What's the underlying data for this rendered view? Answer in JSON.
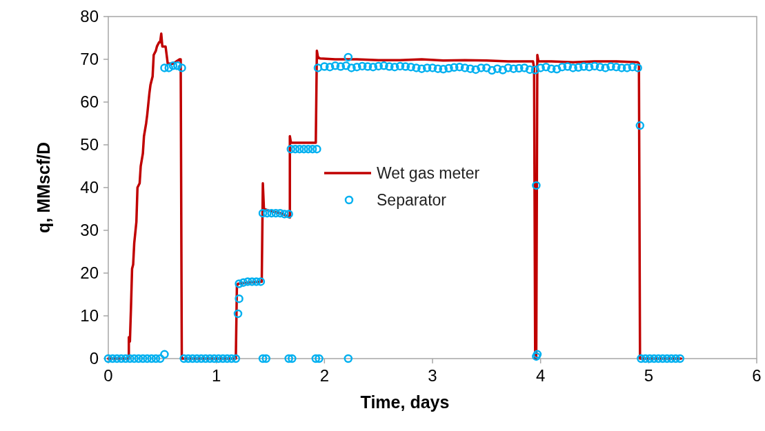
{
  "chart_data": {
    "type": "line",
    "xlabel": "Time, days",
    "ylabel": "q, MMscf/D",
    "xlim": [
      0,
      6
    ],
    "xticks": [
      0,
      1,
      2,
      3,
      4,
      5,
      6
    ],
    "ylim": [
      0,
      80
    ],
    "yticks": [
      0,
      10,
      20,
      30,
      40,
      50,
      60,
      70,
      80
    ],
    "grid": false,
    "legend": "center",
    "series": [
      {
        "name": "Wet gas meter",
        "color": "#c00000",
        "marker": "none",
        "line_style": "solid",
        "x": [
          0,
          0.19,
          0.19,
          0.2,
          0.21,
          0.22,
          0.23,
          0.24,
          0.26,
          0.27,
          0.29,
          0.3,
          0.32,
          0.33,
          0.35,
          0.36,
          0.38,
          0.39,
          0.41,
          0.42,
          0.44,
          0.45,
          0.47,
          0.48,
          0.49,
          0.5,
          0.51,
          0.53,
          0.55,
          0.6,
          0.66,
          0.67,
          0.68,
          1.18,
          1.19,
          1.2,
          1.3,
          1.42,
          1.43,
          1.44,
          1.5,
          1.6,
          1.68,
          1.68,
          1.69,
          1.7,
          1.8,
          1.92,
          1.93,
          1.94,
          1.96,
          2.1,
          2.3,
          2.5,
          2.7,
          2.9,
          3.1,
          3.3,
          3.5,
          3.7,
          3.93,
          3.94,
          3.95,
          3.96,
          3.97,
          3.98,
          4.1,
          4.3,
          4.5,
          4.7,
          4.9,
          4.91,
          4.92,
          5.3
        ],
        "values": [
          0,
          0,
          5,
          4,
          12,
          21,
          22,
          27,
          32,
          40,
          41,
          45,
          48,
          52,
          55,
          57,
          62,
          64,
          66,
          71,
          72,
          73,
          74,
          74,
          76,
          73,
          73,
          73,
          69,
          69,
          70,
          70,
          0,
          0,
          17,
          17.5,
          17.8,
          18,
          41,
          35,
          34.5,
          34,
          33,
          52,
          50.5,
          50.5,
          50.5,
          50.5,
          72,
          70.5,
          70.2,
          70,
          70,
          69.8,
          69.8,
          70,
          69.7,
          69.8,
          69.7,
          69.5,
          69.5,
          68,
          0,
          0,
          71,
          69.5,
          69.5,
          69.3,
          69.5,
          69.5,
          69.3,
          69,
          0,
          0
        ]
      },
      {
        "name": "Separator",
        "type": "scatter",
        "color": "#00b0f0",
        "marker": "circle",
        "x": [
          0,
          0.04,
          0.08,
          0.12,
          0.16,
          0.2,
          0.24,
          0.28,
          0.32,
          0.36,
          0.4,
          0.44,
          0.48,
          0.52,
          0.52,
          0.56,
          0.6,
          0.64,
          0.68,
          0.7,
          0.74,
          0.78,
          0.82,
          0.86,
          0.9,
          0.94,
          0.98,
          1.02,
          1.06,
          1.1,
          1.14,
          1.18,
          1.2,
          1.21,
          1.21,
          1.25,
          1.29,
          1.33,
          1.37,
          1.41,
          1.43,
          1.46,
          1.43,
          1.47,
          1.51,
          1.55,
          1.59,
          1.63,
          1.67,
          1.67,
          1.7,
          1.69,
          1.73,
          1.77,
          1.81,
          1.85,
          1.89,
          1.93,
          1.92,
          1.95,
          1.94,
          2.0,
          2.05,
          2.1,
          2.15,
          2.2,
          2.25,
          2.3,
          2.35,
          2.4,
          2.45,
          2.5,
          2.55,
          2.6,
          2.65,
          2.7,
          2.75,
          2.8,
          2.85,
          2.9,
          2.95,
          3.0,
          3.05,
          3.1,
          3.15,
          3.2,
          3.25,
          3.3,
          3.35,
          3.4,
          3.45,
          3.5,
          3.55,
          3.6,
          3.65,
          3.7,
          3.75,
          3.8,
          3.85,
          3.9,
          3.95,
          4.0,
          4.05,
          4.1,
          4.15,
          4.2,
          4.25,
          4.3,
          4.35,
          4.4,
          4.45,
          4.5,
          4.55,
          4.6,
          4.65,
          4.7,
          4.75,
          4.8,
          4.85,
          4.9,
          2.22,
          2.22,
          3.96,
          3.96,
          3.97,
          4.92,
          4.93,
          4.97,
          5.01,
          5.05,
          5.09,
          5.13,
          5.17,
          5.21,
          5.25,
          5.29
        ],
        "values": [
          0,
          0,
          0,
          0,
          0,
          0,
          0,
          0,
          0,
          0,
          0,
          0,
          0,
          1,
          68,
          68,
          68.5,
          68.5,
          68,
          0,
          0,
          0,
          0,
          0,
          0,
          0,
          0,
          0,
          0,
          0,
          0,
          0,
          10.5,
          14,
          17.5,
          17.8,
          18,
          18,
          18,
          18,
          0,
          0,
          34,
          34,
          34,
          34,
          34,
          33.8,
          33.8,
          0,
          0,
          49,
          49,
          49,
          49,
          49,
          49,
          49,
          0,
          0,
          68,
          68.3,
          68.2,
          68.5,
          68.3,
          68.5,
          68,
          68.2,
          68.4,
          68.3,
          68.2,
          68.4,
          68.5,
          68.3,
          68.2,
          68.4,
          68.3,
          68.2,
          68,
          67.8,
          68,
          68,
          67.8,
          67.7,
          67.9,
          68.1,
          68.2,
          68,
          67.8,
          67.6,
          68,
          68,
          67.4,
          67.8,
          67.5,
          68,
          67.8,
          67.9,
          68,
          67.6,
          67.5,
          68,
          68.2,
          67.8,
          67.7,
          68.2,
          68.3,
          68,
          68.1,
          68.3,
          68.2,
          68.4,
          68.2,
          68,
          68.3,
          68.2,
          68,
          68,
          68.2,
          68,
          70.5,
          0,
          40.5,
          0.5,
          1,
          54.5,
          0,
          0,
          0,
          0,
          0,
          0,
          0,
          0,
          0,
          0
        ]
      }
    ]
  }
}
